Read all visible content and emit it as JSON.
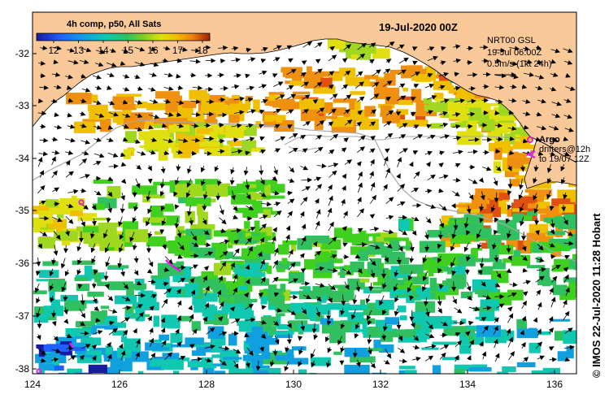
{
  "map": {
    "colorbar_title": "4h comp, p50, All Sats",
    "colorbar_ticks": [
      "12",
      "13",
      "14",
      "15",
      "16",
      "17",
      "18"
    ],
    "colorbar_colors": [
      "#1a1aa0",
      "#2060ff",
      "#10a0e0",
      "#10c8b0",
      "#30c060",
      "#40d020",
      "#a0d820",
      "#e0e010",
      "#f0c000",
      "#f09010",
      "#e05010",
      "#a02000"
    ],
    "date_title": "19-Jul-2020 00Z",
    "legend": {
      "line1": "NRT00 GSL",
      "line2": "19-Jul 06:00Z",
      "line3": "0.5m/s (1kt 24h)"
    },
    "argo_label": "Argo",
    "drifters_label1": "drifters@12h",
    "drifters_label2": "to 19/07 12Z",
    "credit": "© IMOS 22-Jul-2020 11:28 Hobart",
    "lat_ticks": [
      "-32",
      "-33",
      "-34",
      "-35",
      "-36",
      "-37",
      "-38"
    ],
    "lon_ticks": [
      "124",
      "126",
      "128",
      "130",
      "132",
      "134",
      "136"
    ],
    "colors": {
      "land": "#f9c99a",
      "argo": "#e020e0",
      "bathymetry": "#a8a8a8",
      "arrow": "#000000"
    }
  }
}
